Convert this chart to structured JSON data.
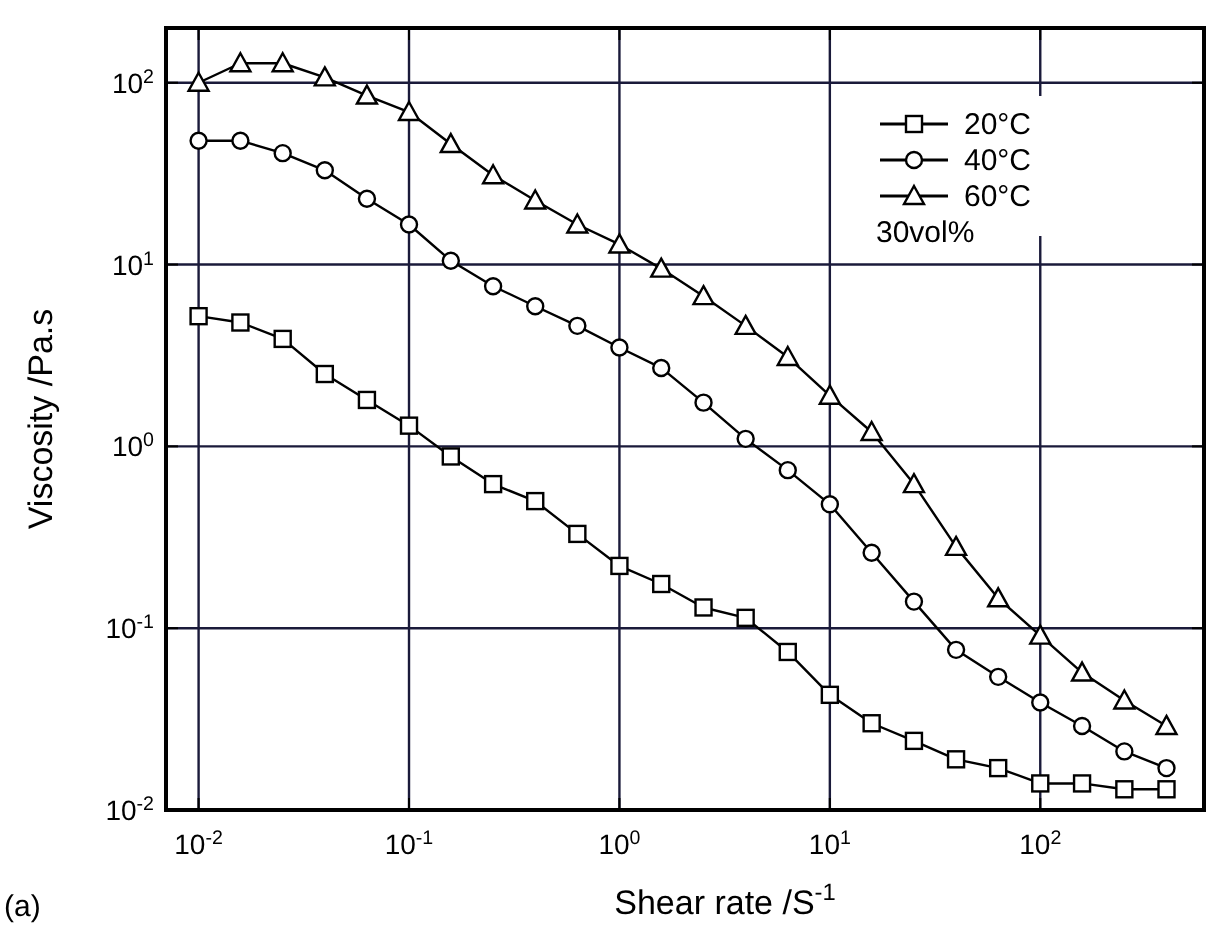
{
  "chart_data": {
    "type": "line",
    "xlabel": "Shear rate /S$^{-1}$",
    "ylabel": "Viscosity /Pa.s",
    "log": "xy",
    "grid": true,
    "legend": "top right",
    "line_style": "solid",
    "xlim": [
      0.007,
      600
    ],
    "ylim": [
      0.01,
      200
    ],
    "xticks": [
      {
        "value": 0.01,
        "label": "10$^{-2}$"
      },
      {
        "value": 0.1,
        "label": "10$^{-1}$"
      },
      {
        "value": 1,
        "label": "10$^{0}$"
      },
      {
        "value": 10,
        "label": "10$^{1}$"
      },
      {
        "value": 100,
        "label": "10$^{2}$"
      }
    ],
    "yticks": [
      {
        "value": 0.01,
        "label": "10$^{-2}$"
      },
      {
        "value": 0.1,
        "label": "10$^{-1}$"
      },
      {
        "value": 1,
        "label": "10$^{0}$"
      },
      {
        "value": 10,
        "label": "10$^{1}$"
      },
      {
        "value": 100,
        "label": "10$^{2}$"
      }
    ],
    "x": [
      0.01,
      0.0158,
      0.0251,
      0.0398,
      0.0631,
      0.1,
      0.158,
      0.251,
      0.398,
      0.631,
      1,
      1.58,
      2.51,
      3.98,
      6.31,
      10,
      15.8,
      25.1,
      39.8,
      63.1,
      100,
      158,
      251,
      398
    ],
    "series": [
      {
        "name": "20°C",
        "color": "#000000",
        "marker": "square",
        "values": [
          5.2,
          4.8,
          3.9,
          2.5,
          1.8,
          1.3,
          0.88,
          0.62,
          0.5,
          0.33,
          0.22,
          0.175,
          0.13,
          0.114,
          0.074,
          0.043,
          0.03,
          0.024,
          0.019,
          0.017,
          0.014,
          0.014,
          0.013,
          0.013
        ]
      },
      {
        "name": "40°C",
        "color": "#000000",
        "marker": "circle",
        "values": [
          48,
          48,
          41,
          33,
          23,
          16.6,
          10.5,
          7.6,
          5.9,
          4.6,
          3.5,
          2.7,
          1.74,
          1.1,
          0.74,
          0.48,
          0.26,
          0.14,
          0.076,
          0.054,
          0.039,
          0.029,
          0.021,
          0.017
        ]
      },
      {
        "name": "60°C",
        "color": "#000000",
        "marker": "triangle",
        "values": [
          100,
          128,
          128,
          107,
          85,
          69,
          46,
          31,
          22.5,
          16.6,
          12.9,
          9.5,
          6.7,
          4.6,
          3.1,
          1.9,
          1.2,
          0.62,
          0.28,
          0.146,
          0.091,
          0.057,
          0.04,
          0.029
        ]
      }
    ],
    "annotations": [
      "30vol%",
      "(a)"
    ]
  }
}
